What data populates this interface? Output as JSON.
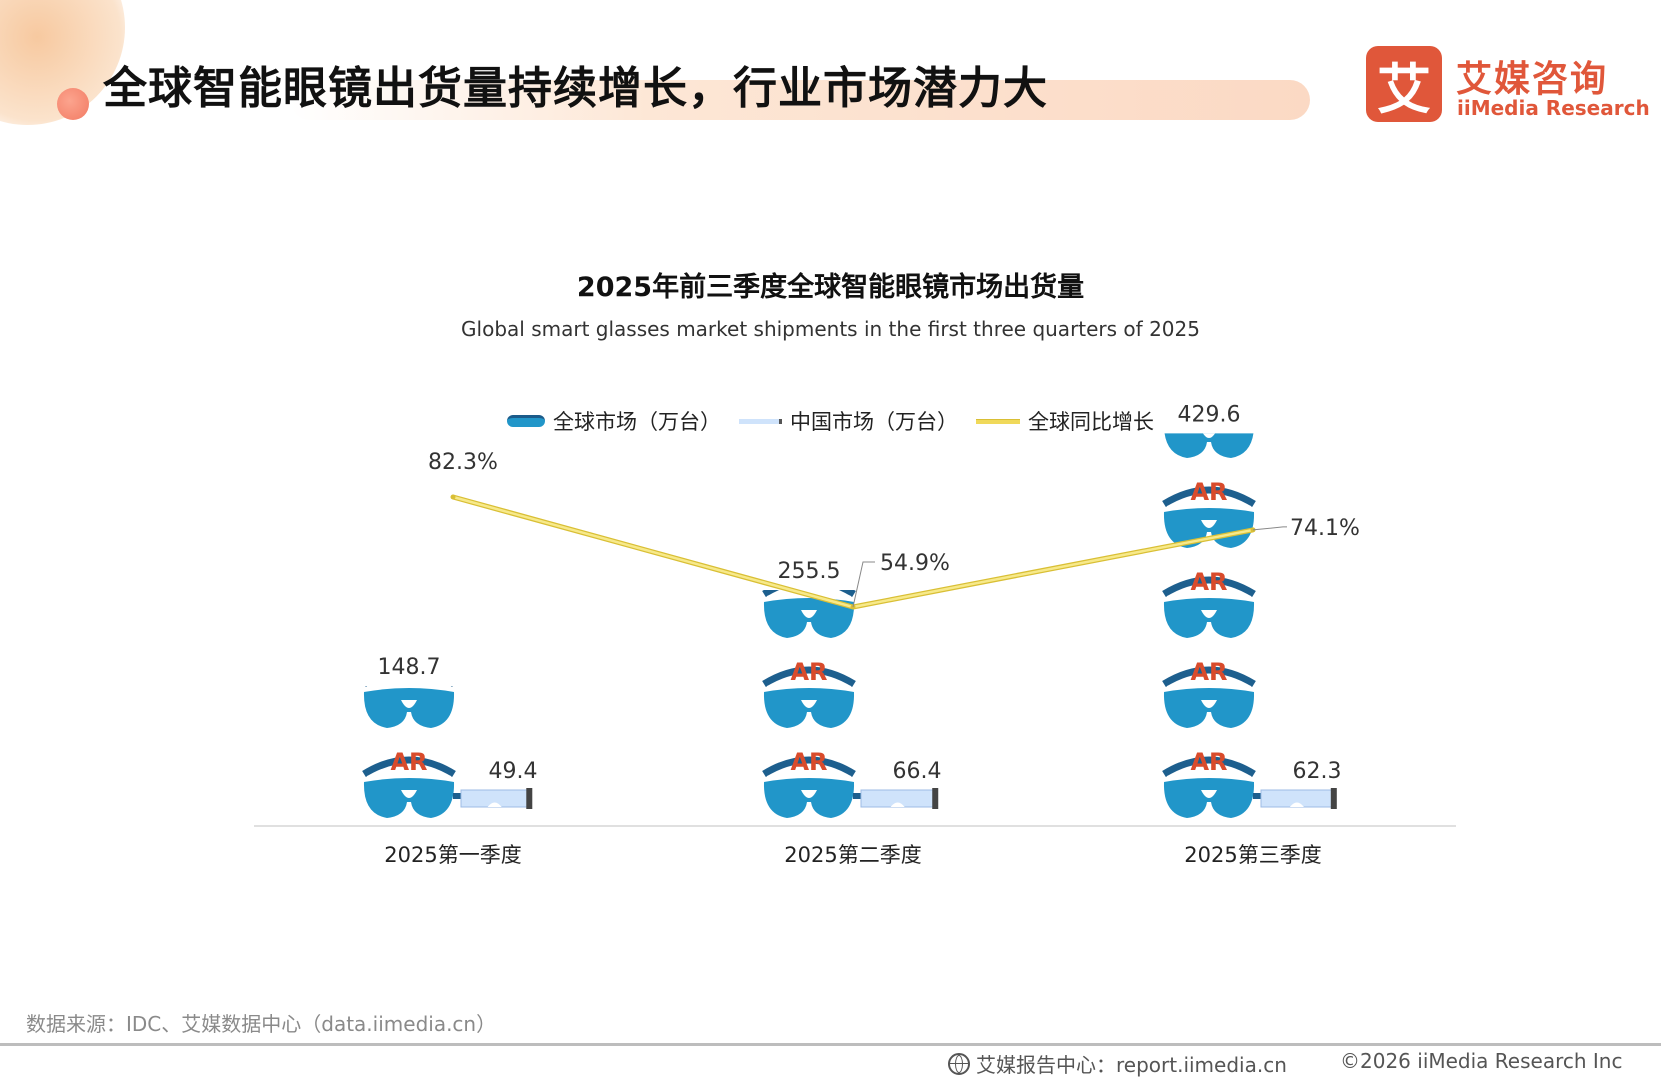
{
  "header": {
    "title": "全球智能眼镜出货量持续增长，行业市场潜力大",
    "logo_mark": "艾",
    "logo_cn": "艾媒咨询",
    "logo_en": "iiMedia Research"
  },
  "chart_data": {
    "type": "bar",
    "title": "2025年前三季度全球智能眼镜市场出货量",
    "subtitle": "Global smart glasses market shipments in the first three quarters of 2025",
    "categories": [
      "2025第一季度",
      "2025第二季度",
      "2025第三季度"
    ],
    "series": [
      {
        "name": "全球市场（万台）",
        "values": [
          148.7,
          255.5,
          429.6
        ],
        "labels": [
          "148.7",
          "255.5",
          "429.6"
        ],
        "color": "#2196c9",
        "style": "pictograph",
        "icon_text": "AR"
      },
      {
        "name": "中国市场（万台）",
        "values": [
          49.4,
          66.4,
          62.3
        ],
        "labels": [
          "49.4",
          "66.4",
          "62.3"
        ],
        "color": "#cfe3fb",
        "style": "pictograph"
      },
      {
        "name": "全球同比增长",
        "values": [
          82.3,
          54.9,
          74.1
        ],
        "labels": [
          "82.3%",
          "54.9%",
          "74.1%"
        ],
        "color": "#f0d95a",
        "style": "line",
        "unit": "%"
      }
    ],
    "pictograph_unit": 100,
    "legend_position": "top-center",
    "grid": false
  },
  "footer": {
    "source": "数据来源：IDC、艾媒数据中心（data.iimedia.cn）",
    "report": "艾媒报告中心：report.iimedia.cn",
    "copyright": "©2026  iiMedia Research  Inc"
  }
}
